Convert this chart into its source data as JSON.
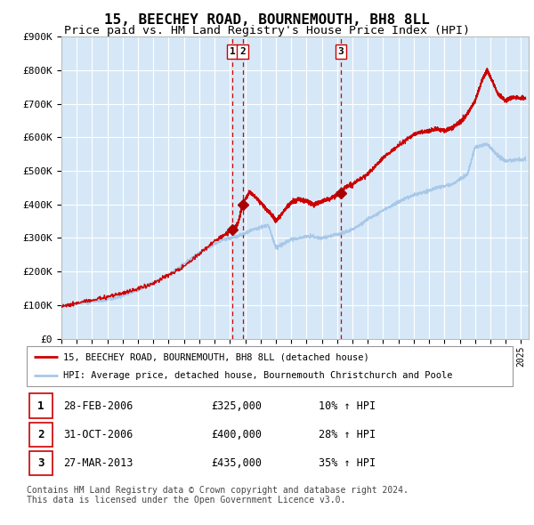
{
  "title": "15, BEECHEY ROAD, BOURNEMOUTH, BH8 8LL",
  "subtitle": "Price paid vs. HM Land Registry's House Price Index (HPI)",
  "title_fontsize": 11.5,
  "subtitle_fontsize": 9.5,
  "plot_bg_color": "#d6e8f7",
  "ylim": [
    0,
    900000
  ],
  "yticks": [
    0,
    100000,
    200000,
    300000,
    400000,
    500000,
    600000,
    700000,
    800000,
    900000
  ],
  "ytick_labels": [
    "£0",
    "£100K",
    "£200K",
    "£300K",
    "£400K",
    "£500K",
    "£600K",
    "£700K",
    "£800K",
    "£900K"
  ],
  "hpi_color": "#a8c8e8",
  "price_color": "#cc0000",
  "marker_color": "#aa0000",
  "vline_color": "#cc0000",
  "grid_color": "#ffffff",
  "transactions": [
    {
      "date_num": 2006.16,
      "price": 325000,
      "label": "1"
    },
    {
      "date_num": 2006.83,
      "price": 400000,
      "label": "2"
    },
    {
      "date_num": 2013.24,
      "price": 435000,
      "label": "3"
    }
  ],
  "legend_entries": [
    "15, BEECHEY ROAD, BOURNEMOUTH, BH8 8LL (detached house)",
    "HPI: Average price, detached house, Bournemouth Christchurch and Poole"
  ],
  "table_data": [
    {
      "num": "1",
      "date": "28-FEB-2006",
      "price": "£325,000",
      "hpi": "10% ↑ HPI"
    },
    {
      "num": "2",
      "date": "31-OCT-2006",
      "price": "£400,000",
      "hpi": "28% ↑ HPI"
    },
    {
      "num": "3",
      "date": "27-MAR-2013",
      "price": "£435,000",
      "hpi": "35% ↑ HPI"
    }
  ],
  "footer": "Contains HM Land Registry data © Crown copyright and database right 2024.\nThis data is licensed under the Open Government Licence v3.0.",
  "xmin": 1995.0,
  "xmax": 2025.5,
  "xtick_years": [
    1995,
    1996,
    1997,
    1998,
    1999,
    2000,
    2001,
    2002,
    2003,
    2004,
    2005,
    2006,
    2007,
    2008,
    2009,
    2010,
    2011,
    2012,
    2013,
    2014,
    2015,
    2016,
    2017,
    2018,
    2019,
    2020,
    2021,
    2022,
    2023,
    2024,
    2025
  ]
}
